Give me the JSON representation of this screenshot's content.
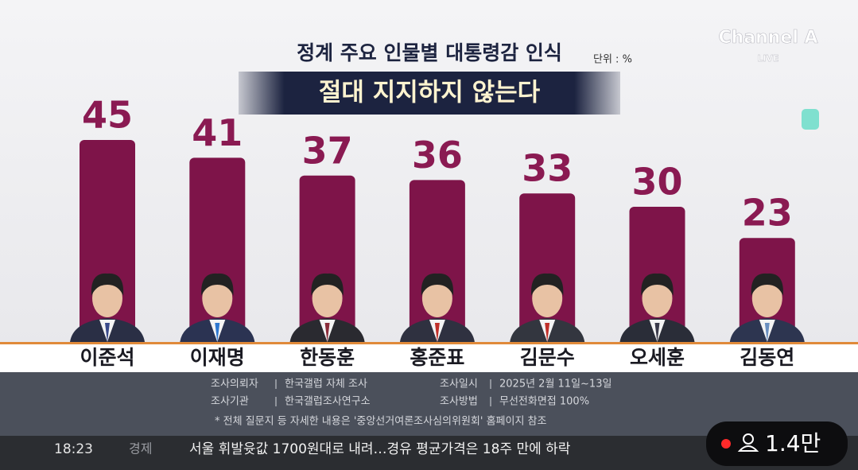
{
  "chart_data": {
    "type": "bar",
    "title": "정계 주요 인물별 대통령감 인식",
    "unit": "단위 : %",
    "subtitle": "절대 지지하지 않는다",
    "categories": [
      "이준석",
      "이재명",
      "한동훈",
      "홍준표",
      "김문수",
      "오세훈",
      "김동연"
    ],
    "values": [
      45,
      41,
      37,
      36,
      33,
      30,
      23
    ],
    "color": "#7e1449"
  },
  "broadcast": {
    "logo": "Channel A",
    "live": "LIVE",
    "time": "18:23",
    "section": "경제",
    "headline": "서울 휘발윳값 1700원대로 내려…경유 평균가격은 18주 만에 하락",
    "viewers": "1.4만"
  },
  "survey": {
    "rows": [
      [
        "조사의뢰자",
        "한국갤럽 자체 조사",
        "조사일시",
        "2025년 2월 11일~13일"
      ],
      [
        "조사기관",
        "한국갤럽조사연구소",
        "조사방법",
        "무선전화면접 100%"
      ]
    ],
    "note": "* 전체 질문지 등 자세한 내용은 '중앙선거여론조사심의위원회' 홈페이지 참조"
  }
}
